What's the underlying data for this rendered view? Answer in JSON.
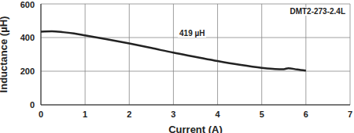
{
  "chart_data": {
    "type": "line",
    "title": "DMT2-273-2.4L",
    "x_label": "Current (A)",
    "y_label": "Inductance (µH)",
    "annotations": [
      "419 µH"
    ],
    "x": [
      0,
      0.25,
      0.5,
      0.75,
      1,
      1.5,
      2,
      2.5,
      3,
      3.5,
      4,
      4.5,
      5,
      5.3,
      5.5,
      5.6,
      5.8,
      6
    ],
    "values": [
      435,
      437,
      432,
      424,
      413,
      390,
      365,
      338,
      310,
      285,
      260,
      238,
      220,
      213,
      212,
      218,
      210,
      203
    ],
    "color": "#222222",
    "xlim": [
      0,
      7
    ],
    "xticks": [
      0,
      1,
      2,
      3,
      4,
      5,
      6,
      7
    ],
    "ylim": [
      0,
      600
    ],
    "yticks": [
      0,
      200,
      400,
      600
    ],
    "grid": true
  }
}
